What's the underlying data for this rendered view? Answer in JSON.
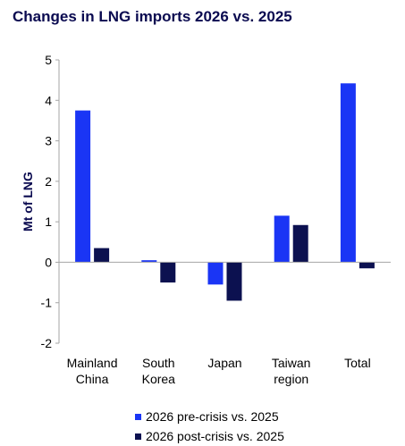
{
  "chart_data": {
    "type": "bar",
    "title": "Changes in LNG imports 2026 vs. 2025",
    "ylabel": "Mt of LNG",
    "xlabel": "",
    "ylim": [
      -2,
      5
    ],
    "yticks": [
      "5",
      "4",
      "3",
      "2",
      "1",
      "0",
      "-1",
      "-2"
    ],
    "categories": [
      [
        "Mainland",
        "China"
      ],
      [
        "South",
        "Korea"
      ],
      [
        "Japan"
      ],
      [
        "Taiwan",
        "region"
      ],
      [
        "Total"
      ]
    ],
    "series": [
      {
        "name": "2026 pre-crisis vs. 2025",
        "color": "#1a35f5",
        "values": [
          3.75,
          0.05,
          -0.55,
          1.15,
          4.42
        ]
      },
      {
        "name": "2026 post-crisis vs. 2025",
        "color": "#0c1150",
        "values": [
          0.35,
          -0.5,
          -0.95,
          0.92,
          -0.15
        ]
      }
    ],
    "grid": false,
    "legend_position": "bottom"
  }
}
